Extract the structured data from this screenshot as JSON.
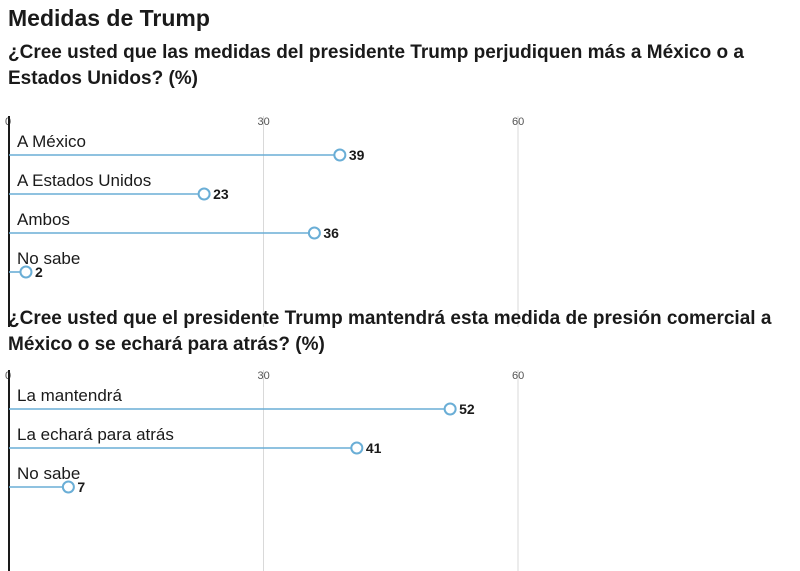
{
  "page_title": "Medidas de Trump",
  "colors": {
    "accent": "#6aaed6",
    "marker_fill": "#ffffff",
    "axis": "#1a1a1a",
    "grid": "#d9d9d9",
    "text": "#1a1a1a"
  },
  "chart_data": [
    {
      "type": "bar",
      "title": "¿Cree usted que las medidas del presidente Trump perjudiquen más a México o a Estados Unidos? (%)",
      "categories": [
        "A México",
        "A Estados Unidos",
        "Ambos",
        "No sabe"
      ],
      "values": [
        39,
        23,
        36,
        2
      ],
      "xlim": [
        0,
        60
      ],
      "xticks": [
        0,
        30,
        60
      ],
      "orientation": "horizontal",
      "marker": "circle",
      "grid": true
    },
    {
      "type": "bar",
      "title": "¿Cree usted que el presidente Trump mantendrá esta medida de presión comercial a México o se echará para atrás? (%)",
      "categories": [
        "La mantendrá",
        "La echará para atrás",
        "No sabe"
      ],
      "values": [
        52,
        41,
        7
      ],
      "xlim": [
        0,
        60
      ],
      "xticks": [
        0,
        30,
        60
      ],
      "orientation": "horizontal",
      "marker": "circle",
      "grid": true
    }
  ]
}
